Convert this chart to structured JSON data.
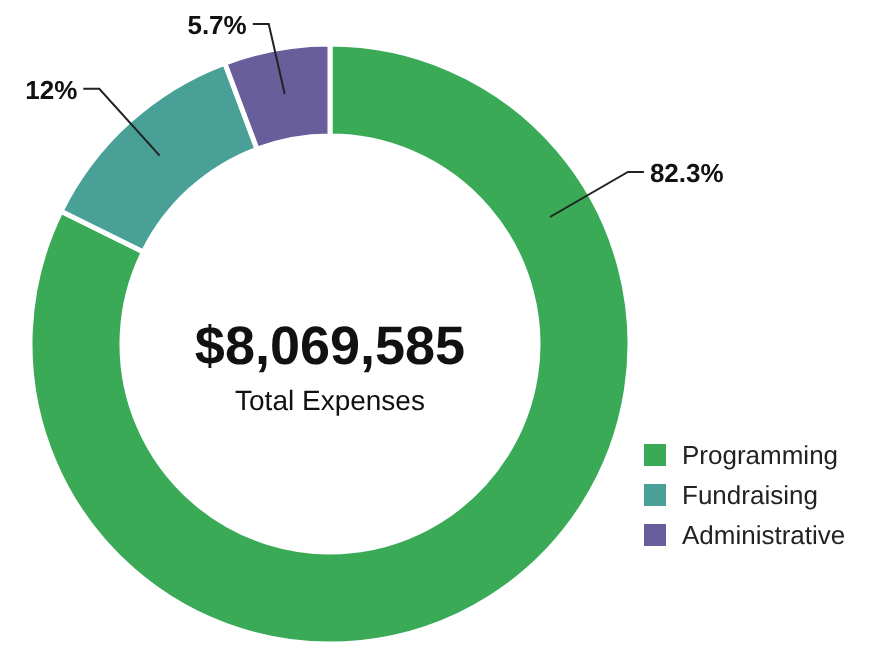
{
  "chart_data": {
    "type": "donut",
    "categories": [
      "Programming",
      "Fundraising",
      "Administrative"
    ],
    "values": [
      82.3,
      12,
      5.7
    ],
    "colors": [
      "#3aaa57",
      "#48a096",
      "#685e9c"
    ],
    "value_labels": [
      "82.3%",
      "12%",
      "5.7%"
    ],
    "annotations": [
      "$8,069,585",
      "Total Expenses"
    ],
    "legend": "bottom right"
  }
}
